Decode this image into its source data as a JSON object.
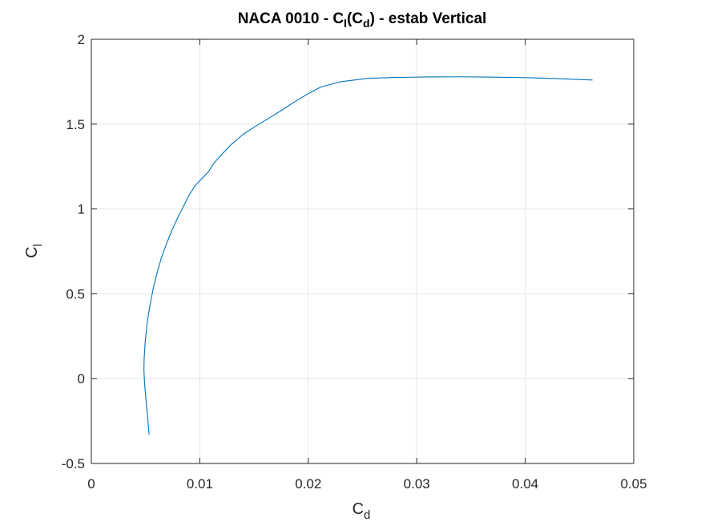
{
  "chart_data": {
    "type": "line",
    "title": "NACA 0010 - C_l(C_d) - estab Vertical",
    "title_parts": {
      "t1": "NACA 0010 - C",
      "s1": "l",
      "t2": "(C",
      "s2": "d",
      "t3": ") - estab Vertical"
    },
    "xlabel": {
      "main": "C",
      "sub": "d"
    },
    "ylabel": {
      "main": "C",
      "sub": "l"
    },
    "xlim": [
      0,
      0.05
    ],
    "ylim": [
      -0.5,
      2
    ],
    "grid": true,
    "x_ticks": [
      {
        "value": 0,
        "label": "0"
      },
      {
        "value": 0.01,
        "label": "0.01"
      },
      {
        "value": 0.02,
        "label": "0.02"
      },
      {
        "value": 0.03,
        "label": "0.03"
      },
      {
        "value": 0.04,
        "label": "0.04"
      },
      {
        "value": 0.05,
        "label": "0.05"
      }
    ],
    "y_ticks": [
      {
        "value": -0.5,
        "label": "-0.5"
      },
      {
        "value": 0,
        "label": "0"
      },
      {
        "value": 0.5,
        "label": "0.5"
      },
      {
        "value": 1,
        "label": "1"
      },
      {
        "value": 1.5,
        "label": "1.5"
      },
      {
        "value": 2,
        "label": "2"
      }
    ],
    "series": [
      {
        "color": "#0072BD",
        "x": [
          0.00533,
          0.00515,
          0.005,
          0.0049,
          0.00485,
          0.00487,
          0.00497,
          0.00515,
          0.0054,
          0.0057,
          0.00605,
          0.00645,
          0.0069,
          0.0074,
          0.0079,
          0.00845,
          0.009,
          0.0096,
          0.0102,
          0.0108,
          0.0113,
          0.012,
          0.0129,
          0.014,
          0.0152,
          0.0165,
          0.0175,
          0.0187,
          0.02,
          0.0212,
          0.023,
          0.0255,
          0.028,
          0.031,
          0.034,
          0.037,
          0.04,
          0.043,
          0.0462
        ],
        "y": [
          -0.33,
          -0.2,
          -0.1,
          -0.02,
          0.05,
          0.12,
          0.22,
          0.33,
          0.43,
          0.53,
          0.62,
          0.71,
          0.79,
          0.87,
          0.94,
          1.01,
          1.08,
          1.14,
          1.18,
          1.22,
          1.27,
          1.32,
          1.38,
          1.44,
          1.49,
          1.54,
          1.58,
          1.63,
          1.68,
          1.72,
          1.75,
          1.77,
          1.775,
          1.778,
          1.779,
          1.777,
          1.774,
          1.768,
          1.76
        ]
      }
    ]
  }
}
